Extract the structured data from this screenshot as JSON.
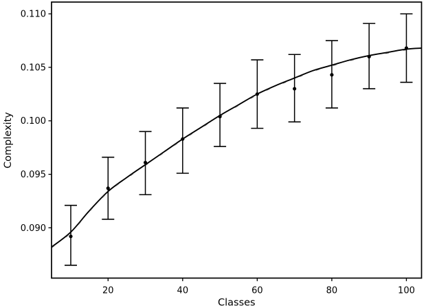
{
  "chart_data": {
    "type": "scatter",
    "subtype": "errorbar-points-with-fit-curve",
    "title": "",
    "xlabel": "Classes",
    "ylabel": "Complexity",
    "xlim": [
      4.84,
      104.06
    ],
    "ylim": [
      0.0853,
      0.1111
    ],
    "x_tick_values": [
      20,
      40,
      60,
      80,
      100
    ],
    "x_tick_labels": [
      "20",
      "40",
      "60",
      "80",
      "100"
    ],
    "y_tick_values": [
      0.09,
      0.095,
      0.1,
      0.105,
      0.11
    ],
    "y_tick_labels": [
      "0.090",
      "0.095",
      "0.100",
      "0.105",
      "0.110"
    ],
    "grid": false,
    "legend": "none",
    "colors": {
      "data": "#000000",
      "text": "#000000",
      "spine": "#000000",
      "dash_overlay": "#2a2a2a"
    },
    "series": [
      {
        "name": "measured-complexity-errorbars",
        "type": "errorbar",
        "marker": "filled-circle",
        "color": "#000000",
        "x": [
          10,
          20,
          30,
          40,
          50,
          60,
          70,
          80,
          90,
          100
        ],
        "y": [
          0.0892,
          0.0937,
          0.0961,
          0.0983,
          0.1004,
          0.1025,
          0.103,
          0.1043,
          0.106,
          0.1068
        ],
        "y_upper": [
          0.0921,
          0.0966,
          0.099,
          0.1012,
          0.1035,
          0.1057,
          0.1062,
          0.1075,
          0.1091,
          0.11
        ],
        "y_lower": [
          0.0865,
          0.0908,
          0.0931,
          0.0951,
          0.0976,
          0.0993,
          0.0999,
          0.1012,
          0.103,
          0.1036
        ]
      },
      {
        "name": "fit-curve",
        "type": "line",
        "style": "solid-with-dashed-overlay",
        "color": "#000000",
        "x": [
          4.84,
          10,
          15,
          20,
          25,
          30,
          35,
          40,
          45,
          50,
          55,
          60,
          65,
          70,
          75,
          80,
          85,
          90,
          95,
          100,
          104.06
        ],
        "y": [
          0.0882,
          0.0896,
          0.0916,
          0.0934,
          0.0947,
          0.0959,
          0.0971,
          0.0983,
          0.0994,
          0.1005,
          0.1015,
          0.1025,
          0.1033,
          0.104,
          0.1047,
          0.1052,
          0.1057,
          0.1061,
          0.1064,
          0.1067,
          0.1068
        ]
      }
    ]
  }
}
